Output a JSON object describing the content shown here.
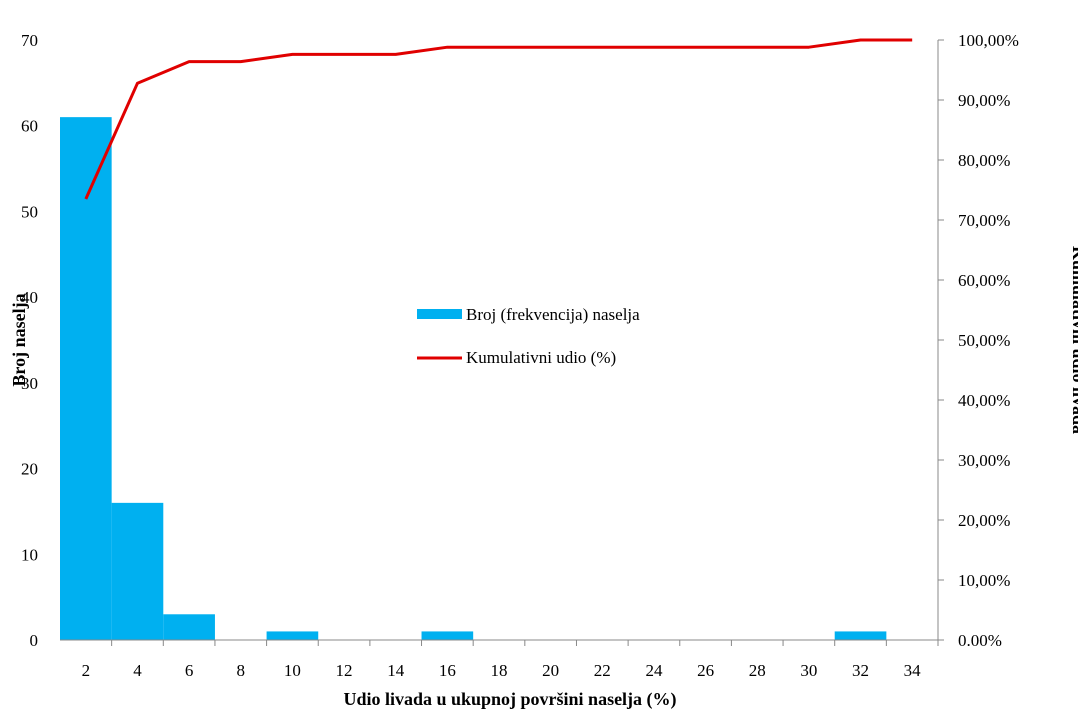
{
  "chart_data": {
    "type": "bar",
    "combo": "bar+line (Pareto / histogram with cumulative line)",
    "title": "",
    "xlabel": "Udio livada u ukupnoj površini naselja (%)",
    "ylabel": "Broj naselja",
    "y2label": "Kumulativni udio livada",
    "categories": [
      "2",
      "4",
      "6",
      "8",
      "10",
      "12",
      "14",
      "16",
      "18",
      "20",
      "22",
      "24",
      "26",
      "28",
      "30",
      "32",
      "34"
    ],
    "ylim": [
      0,
      70
    ],
    "yticks": [
      "0",
      "10",
      "20",
      "30",
      "40",
      "50",
      "60",
      "70"
    ],
    "y2lim": [
      0,
      100
    ],
    "y2ticks": [
      "0.00%",
      "10,00%",
      "20,00%",
      "30,00%",
      "40,00%",
      "50,00%",
      "60,00%",
      "70,00%",
      "80,00%",
      "90,00%",
      "100,00%"
    ],
    "legend_position": "center",
    "grid": false,
    "series": [
      {
        "name": "Broj (frekvencija) naselja",
        "kind": "bar",
        "color": "#00b0f0",
        "values": [
          61,
          16,
          3,
          0,
          1,
          0,
          0,
          1,
          0,
          0,
          0,
          0,
          0,
          0,
          0,
          1,
          0
        ]
      },
      {
        "name": "Kumulativni udio (%)",
        "kind": "line",
        "color": "#e00000",
        "values": [
          73.5,
          92.8,
          96.4,
          96.4,
          97.6,
          97.6,
          97.6,
          98.8,
          98.8,
          98.8,
          98.8,
          98.8,
          98.8,
          98.8,
          98.8,
          100,
          100
        ]
      }
    ]
  }
}
